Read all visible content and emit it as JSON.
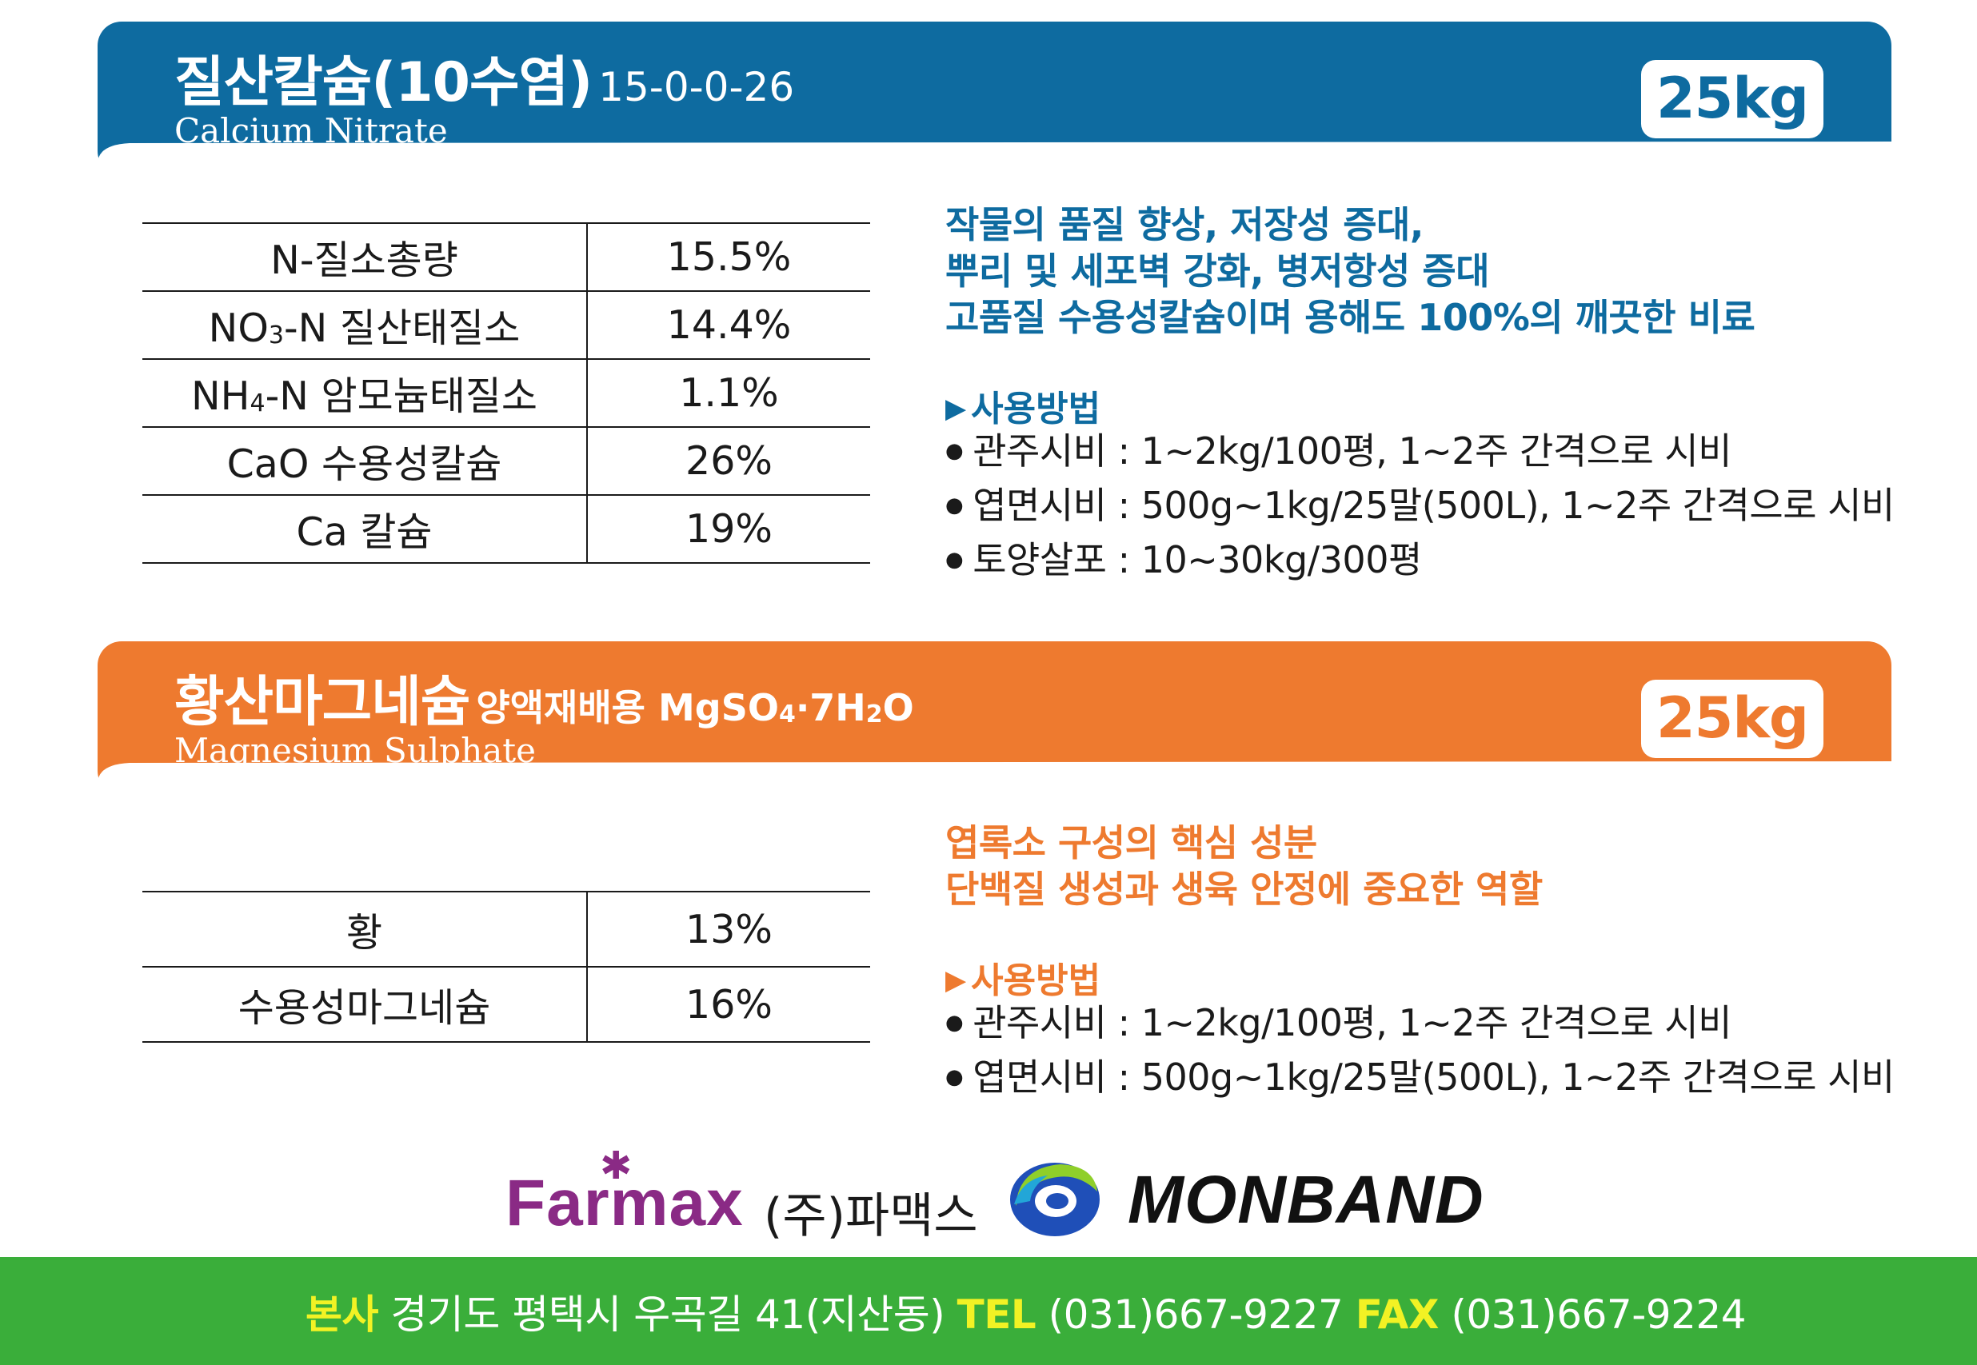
{
  "product1": {
    "title_ko": "질산칼슘(10수염)",
    "formula": "15-0-0-26",
    "title_en": "Calcium Nitrate",
    "weight": "25kg",
    "components": [
      {
        "name_pre": "N-질소총량",
        "sub": "",
        "name_post": "",
        "value": "15.5%"
      },
      {
        "name_pre": "NO",
        "sub": "3",
        "name_post": "-N 질산태질소",
        "value": "14.4%"
      },
      {
        "name_pre": "NH",
        "sub": "4",
        "name_post": "-N 암모늄태질소",
        "value": "1.1%"
      },
      {
        "name_pre": "CaO 수용성칼슘",
        "sub": "",
        "name_post": "",
        "value": "26%"
      },
      {
        "name_pre": "Ca 칼슘",
        "sub": "",
        "name_post": "",
        "value": "19%"
      }
    ],
    "description": [
      "작물의 품질 향상, 저장성 증대,",
      "뿌리 및 세포벽 강화, 병저항성 증대",
      "고품질 수용성칼슘이며 용해도 100%의 깨끗한 비료"
    ],
    "usage_title": "사용방법",
    "usage": [
      "관주시비 : 1~2kg/100평, 1~2주 간격으로 시비",
      "엽면시비 : 500g~1kg/25말(500L), 1~2주 간격으로 시비",
      "토양살포 : 10~30kg/300평"
    ]
  },
  "product2": {
    "title_ko": "황산마그네슘",
    "subtitle_pre": "양액재배용 MgSO",
    "subtitle_sub1": "4",
    "subtitle_mid": "·7H",
    "subtitle_sub2": "2",
    "subtitle_post": "O",
    "title_en": "Magnesium Sulphate",
    "weight": "25kg",
    "components": [
      {
        "name": "황",
        "value": "13%"
      },
      {
        "name": "수용성마그네슘",
        "value": "16%"
      }
    ],
    "description": [
      "엽록소 구성의 핵심 성분",
      "단백질 생성과 생육 안정에 중요한 역할"
    ],
    "usage_title": "사용방법",
    "usage": [
      "관주시비 : 1~2kg/100평, 1~2주 간격으로 시비",
      "엽면시비 : 500g~1kg/25말(500L), 1~2주 간격으로 시비"
    ]
  },
  "brand": {
    "farmax_logo": "Farmax",
    "company_ko": "(주)파맥스",
    "monband_logo": "MONBAND"
  },
  "footer": {
    "hq_label": "본사",
    "address": "경기도 평택시 우곡길 41(지산동)",
    "tel_label": "TEL",
    "tel": "(031)667-9227",
    "fax_label": "FAX",
    "fax": "(031)667-9224"
  },
  "colors": {
    "blue": "#0e6ba0",
    "orange": "#ee7a2f",
    "green": "#3aae3a",
    "yellow": "#f2f224",
    "purple": "#8a2a85"
  }
}
